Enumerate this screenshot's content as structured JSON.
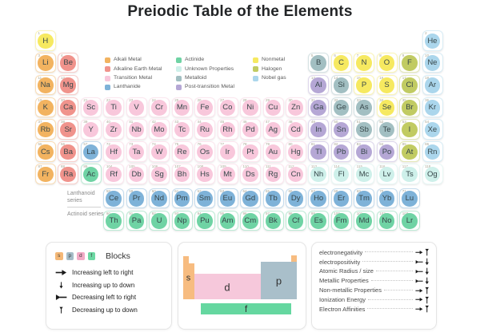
{
  "title": "Preiodic Table of the Elements",
  "categories": {
    "alk": {
      "label": "Alkali Metal",
      "color": "#F2B360"
    },
    "ae": {
      "label": "Alkaline Earth Metal",
      "color": "#F0938C"
    },
    "tm": {
      "label": "Transition Metal",
      "color": "#F8C7DB"
    },
    "la": {
      "label": "Lanthanide",
      "color": "#7EB2D8"
    },
    "ac": {
      "label": "Actinide",
      "color": "#6FD3A4"
    },
    "uk": {
      "label": "Unknown Properties",
      "color": "#CEF0EA"
    },
    "md": {
      "label": "Metalloid",
      "color": "#A2BFC2"
    },
    "pt": {
      "label": "Post-transition Metal",
      "color": "#B5A7D5"
    },
    "nm": {
      "label": "Nonmetal",
      "color": "#F6E960"
    },
    "hal": {
      "label": "Halogen",
      "color": "#C1CB62"
    },
    "ng": {
      "label": "Nobel gas",
      "color": "#ABD6EC"
    }
  },
  "legend_columns": [
    [
      "alk",
      "ae",
      "tm",
      "la"
    ],
    [
      "ac",
      "uk",
      "md",
      "pt"
    ],
    [
      "nm",
      "hal",
      "ng"
    ]
  ],
  "elements": [
    [
      1,
      "H",
      "nm",
      1,
      1
    ],
    [
      2,
      "He",
      "ng",
      1,
      18
    ],
    [
      3,
      "Li",
      "alk",
      2,
      1
    ],
    [
      4,
      "Be",
      "ae",
      2,
      2
    ],
    [
      5,
      "B",
      "md",
      2,
      13
    ],
    [
      6,
      "C",
      "nm",
      2,
      14
    ],
    [
      7,
      "N",
      "nm",
      2,
      15
    ],
    [
      8,
      "O",
      "nm",
      2,
      16
    ],
    [
      9,
      "F",
      "hal",
      2,
      17
    ],
    [
      10,
      "Ne",
      "ng",
      2,
      18
    ],
    [
      11,
      "Na",
      "alk",
      3,
      1
    ],
    [
      12,
      "Mg",
      "ae",
      3,
      2
    ],
    [
      13,
      "Al",
      "pt",
      3,
      13
    ],
    [
      14,
      "Si",
      "md",
      3,
      14
    ],
    [
      15,
      "P",
      "nm",
      3,
      15
    ],
    [
      16,
      "S",
      "nm",
      3,
      16
    ],
    [
      17,
      "Cl",
      "hal",
      3,
      17
    ],
    [
      18,
      "Ar",
      "ng",
      3,
      18
    ],
    [
      19,
      "K",
      "alk",
      4,
      1
    ],
    [
      20,
      "Ca",
      "ae",
      4,
      2
    ],
    [
      21,
      "Sc",
      "tm",
      4,
      3
    ],
    [
      22,
      "Ti",
      "tm",
      4,
      4
    ],
    [
      23,
      "V",
      "tm",
      4,
      5
    ],
    [
      24,
      "Cr",
      "tm",
      4,
      6
    ],
    [
      25,
      "Mn",
      "tm",
      4,
      7
    ],
    [
      26,
      "Fe",
      "tm",
      4,
      8
    ],
    [
      27,
      "Co",
      "tm",
      4,
      9
    ],
    [
      28,
      "Ni",
      "tm",
      4,
      10
    ],
    [
      29,
      "Cu",
      "tm",
      4,
      11
    ],
    [
      30,
      "Zn",
      "tm",
      4,
      12
    ],
    [
      31,
      "Ga",
      "pt",
      4,
      13
    ],
    [
      32,
      "Ge",
      "md",
      4,
      14
    ],
    [
      33,
      "As",
      "md",
      4,
      15
    ],
    [
      34,
      "Se",
      "nm",
      4,
      16
    ],
    [
      35,
      "Br",
      "hal",
      4,
      17
    ],
    [
      36,
      "Kr",
      "ng",
      4,
      18
    ],
    [
      37,
      "Rb",
      "alk",
      5,
      1
    ],
    [
      38,
      "Sr",
      "ae",
      5,
      2
    ],
    [
      39,
      "Y",
      "tm",
      5,
      3
    ],
    [
      40,
      "Zr",
      "tm",
      5,
      4
    ],
    [
      41,
      "Nb",
      "tm",
      5,
      5
    ],
    [
      42,
      "Mo",
      "tm",
      5,
      6
    ],
    [
      43,
      "Tc",
      "tm",
      5,
      7
    ],
    [
      44,
      "Ru",
      "tm",
      5,
      8
    ],
    [
      45,
      "Rh",
      "tm",
      5,
      9
    ],
    [
      46,
      "Pd",
      "tm",
      5,
      10
    ],
    [
      47,
      "Ag",
      "tm",
      5,
      11
    ],
    [
      48,
      "Cd",
      "tm",
      5,
      12
    ],
    [
      49,
      "In",
      "pt",
      5,
      13
    ],
    [
      50,
      "Sn",
      "pt",
      5,
      14
    ],
    [
      51,
      "Sb",
      "md",
      5,
      15
    ],
    [
      52,
      "Te",
      "md",
      5,
      16
    ],
    [
      53,
      "I",
      "hal",
      5,
      17
    ],
    [
      54,
      "Xe",
      "ng",
      5,
      18
    ],
    [
      55,
      "Cs",
      "alk",
      6,
      1
    ],
    [
      56,
      "Ba",
      "ae",
      6,
      2
    ],
    [
      57,
      "La",
      "la",
      6,
      3
    ],
    [
      72,
      "Hf",
      "tm",
      6,
      4
    ],
    [
      73,
      "Ta",
      "tm",
      6,
      5
    ],
    [
      74,
      "W",
      "tm",
      6,
      6
    ],
    [
      75,
      "Re",
      "tm",
      6,
      7
    ],
    [
      76,
      "Os",
      "tm",
      6,
      8
    ],
    [
      77,
      "Ir",
      "tm",
      6,
      9
    ],
    [
      78,
      "Pt",
      "tm",
      6,
      10
    ],
    [
      79,
      "Au",
      "tm",
      6,
      11
    ],
    [
      80,
      "Hg",
      "tm",
      6,
      12
    ],
    [
      81,
      "Tl",
      "pt",
      6,
      13
    ],
    [
      82,
      "Pb",
      "pt",
      6,
      14
    ],
    [
      83,
      "Bi",
      "pt",
      6,
      15
    ],
    [
      84,
      "Po",
      "pt",
      6,
      16
    ],
    [
      85,
      "At",
      "hal",
      6,
      17
    ],
    [
      86,
      "Rn",
      "ng",
      6,
      18
    ],
    [
      87,
      "Fr",
      "alk",
      7,
      1
    ],
    [
      88,
      "Ra",
      "ae",
      7,
      2
    ],
    [
      89,
      "Ac",
      "ac",
      7,
      3
    ],
    [
      104,
      "Rf",
      "tm",
      7,
      4
    ],
    [
      105,
      "Db",
      "tm",
      7,
      5
    ],
    [
      106,
      "Sg",
      "tm",
      7,
      6
    ],
    [
      107,
      "Bh",
      "tm",
      7,
      7
    ],
    [
      108,
      "Hs",
      "tm",
      7,
      8
    ],
    [
      109,
      "Mt",
      "tm",
      7,
      9
    ],
    [
      110,
      "Ds",
      "tm",
      7,
      10
    ],
    [
      111,
      "Rg",
      "tm",
      7,
      11
    ],
    [
      112,
      "Cn",
      "tm",
      7,
      12
    ],
    [
      113,
      "Nh",
      "uk",
      7,
      13
    ],
    [
      114,
      "Fl",
      "uk",
      7,
      14
    ],
    [
      115,
      "Mc",
      "uk",
      7,
      15
    ],
    [
      116,
      "Lv",
      "uk",
      7,
      16
    ],
    [
      117,
      "Ts",
      "uk",
      7,
      17
    ],
    [
      118,
      "Og",
      "uk",
      7,
      18
    ],
    [
      58,
      "Ce",
      "la",
      8,
      4
    ],
    [
      59,
      "Pr",
      "la",
      8,
      5
    ],
    [
      60,
      "Nd",
      "la",
      8,
      6
    ],
    [
      61,
      "Pm",
      "la",
      8,
      7
    ],
    [
      62,
      "Sm",
      "la",
      8,
      8
    ],
    [
      63,
      "Eu",
      "la",
      8,
      9
    ],
    [
      64,
      "Gd",
      "la",
      8,
      10
    ],
    [
      65,
      "Tb",
      "la",
      8,
      11
    ],
    [
      66,
      "Dy",
      "la",
      8,
      12
    ],
    [
      67,
      "Ho",
      "la",
      8,
      13
    ],
    [
      68,
      "Er",
      "la",
      8,
      14
    ],
    [
      69,
      "Tm",
      "la",
      8,
      15
    ],
    [
      70,
      "Yb",
      "la",
      8,
      16
    ],
    [
      71,
      "Lu",
      "la",
      8,
      17
    ],
    [
      90,
      "Th",
      "ac",
      9,
      4
    ],
    [
      91,
      "Pa",
      "ac",
      9,
      5
    ],
    [
      92,
      "U",
      "ac",
      9,
      6
    ],
    [
      93,
      "Np",
      "ac",
      9,
      7
    ],
    [
      94,
      "Pu",
      "ac",
      9,
      8
    ],
    [
      95,
      "Am",
      "ac",
      9,
      9
    ],
    [
      96,
      "Cm",
      "ac",
      9,
      10
    ],
    [
      97,
      "Bk",
      "ac",
      9,
      11
    ],
    [
      98,
      "Cf",
      "ac",
      9,
      12
    ],
    [
      99,
      "Es",
      "ac",
      9,
      13
    ],
    [
      100,
      "Fm",
      "ac",
      9,
      14
    ],
    [
      101,
      "Md",
      "ac",
      9,
      15
    ],
    [
      102,
      "No",
      "ac",
      9,
      16
    ],
    [
      103,
      "Lr",
      "ac",
      9,
      17
    ]
  ],
  "series_labels": {
    "lanthanoid": "Lanthanoid series",
    "actinoid": "Actinoid series"
  },
  "blocks_panel": {
    "title": "Blocks",
    "blocks": [
      {
        "letter": "s",
        "color": "#F4B877"
      },
      {
        "letter": "p",
        "color": "#A5BCC7"
      },
      {
        "letter": "d",
        "color": "#F2ABC6"
      },
      {
        "letter": "f",
        "color": "#6CD8A3"
      }
    ],
    "arrows": [
      {
        "icon": "inc-lr",
        "label": "Increasing left to right"
      },
      {
        "icon": "inc-ud",
        "label": "Increasing up to down"
      },
      {
        "icon": "dec-lr",
        "label": "Decreasing left to right"
      },
      {
        "icon": "dec-ud",
        "label": "Decreasing up to down"
      }
    ]
  },
  "blocks_diagram": {
    "s": "s",
    "d": "d",
    "p": "p",
    "f": "f",
    "colors": {
      "s": "#F7BC80",
      "d": "#F6C8DB",
      "p": "#A9BFCA",
      "f": "#65D7A0"
    }
  },
  "properties_panel": {
    "items": [
      {
        "label": "electronegativity",
        "h": "inc-lr",
        "v": "dec-ud"
      },
      {
        "label": "electropositivity",
        "h": "dec-lr",
        "v": "inc-ud"
      },
      {
        "label": "Atomic Radius / size",
        "h": "dec-lr",
        "v": "inc-ud"
      },
      {
        "label": "Metallic Properties",
        "h": "dec-lr",
        "v": "inc-ud"
      },
      {
        "label": "Non-metallic Properties",
        "h": "inc-lr",
        "v": "dec-ud"
      },
      {
        "label": "Ionization Energy",
        "h": "inc-lr",
        "v": "dec-ud"
      },
      {
        "label": "Electron Affinities",
        "h": "inc-lr",
        "v": "dec-ud"
      }
    ]
  }
}
